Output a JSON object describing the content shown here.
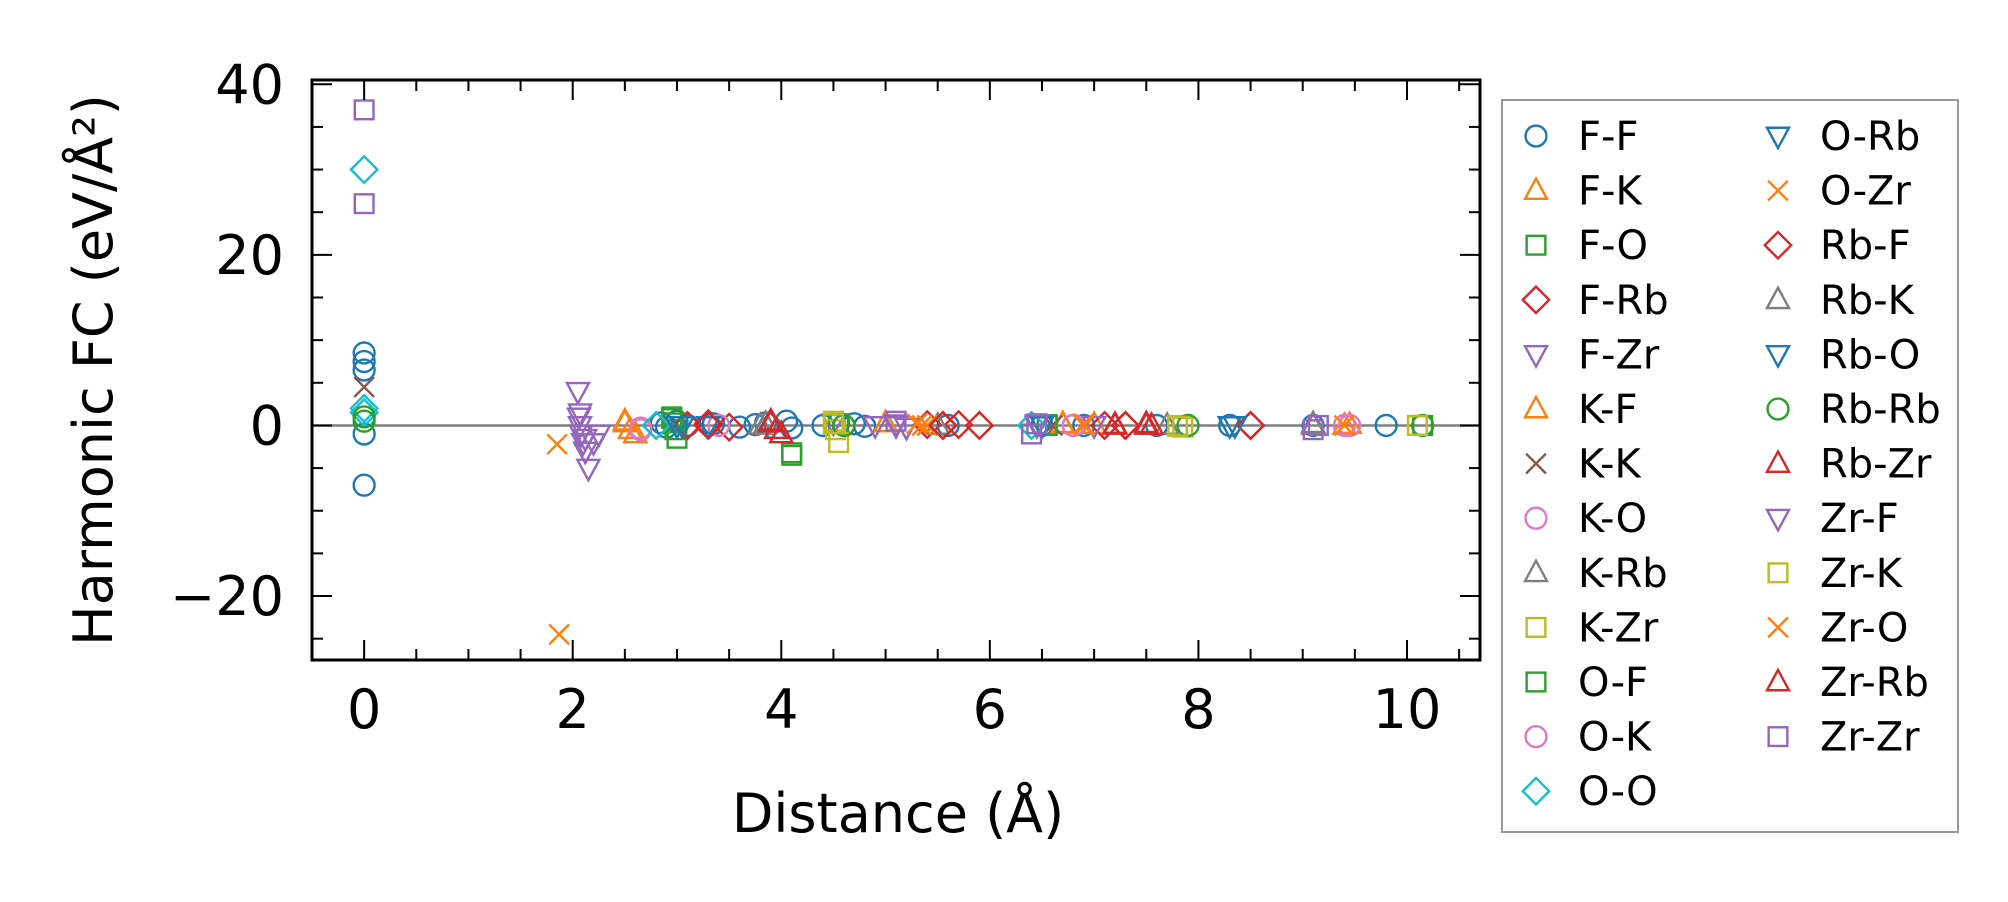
{
  "chart_data": {
    "type": "scatter",
    "title": "",
    "xlabel": "Distance (Å)",
    "ylabel": "Harmonic FC (eV/Å²)",
    "xlim": [
      -0.5,
      10.7
    ],
    "ylim": [
      -27.5,
      40.5
    ],
    "xticks": [
      0,
      2,
      4,
      6,
      8,
      10
    ],
    "xtick_labels": [
      "0",
      "2",
      "4",
      "6",
      "8",
      "10"
    ],
    "yticks": [
      -20,
      0,
      20,
      40
    ],
    "ytick_labels": [
      "−20",
      "0",
      "20",
      "40"
    ],
    "reference_line_y": 0,
    "legend_position": "outside-right",
    "series": [
      {
        "name": "F-F",
        "marker": "circle",
        "color": "#1f77b4",
        "points": [
          [
            0,
            8.5
          ],
          [
            0,
            7.5
          ],
          [
            0,
            6.5
          ],
          [
            0,
            -1
          ],
          [
            0,
            -7
          ],
          [
            2.85,
            0.3
          ],
          [
            2.9,
            -0.2
          ],
          [
            3.0,
            0.5
          ],
          [
            3.1,
            0
          ],
          [
            3.35,
            0.2
          ],
          [
            3.6,
            -0.2
          ],
          [
            3.75,
            0.1
          ],
          [
            3.85,
            0.3
          ],
          [
            4.05,
            0.5
          ],
          [
            4.1,
            -0.3
          ],
          [
            4.4,
            0
          ],
          [
            4.55,
            0.3
          ],
          [
            4.6,
            0
          ],
          [
            4.7,
            0.2
          ],
          [
            4.8,
            -0.1
          ],
          [
            5.6,
            0
          ],
          [
            6.5,
            0
          ],
          [
            6.9,
            0
          ],
          [
            7.6,
            0
          ],
          [
            8.3,
            0
          ],
          [
            9.1,
            0
          ],
          [
            9.8,
            0
          ]
        ]
      },
      {
        "name": "F-K",
        "marker": "triangle-up",
        "color": "#ff7f0e",
        "points": [
          [
            2.5,
            0.5
          ],
          [
            2.55,
            -0.5
          ],
          [
            2.6,
            -1
          ],
          [
            5.0,
            0.3
          ],
          [
            6.7,
            0.2
          ],
          [
            7.0,
            0.1
          ],
          [
            9.45,
            0.1
          ]
        ]
      },
      {
        "name": "F-O",
        "marker": "square",
        "color": "#2ca02c",
        "points": [
          [
            2.95,
            1
          ],
          [
            2.97,
            0.3
          ],
          [
            2.98,
            -0.5
          ],
          [
            3.0,
            -1.5
          ],
          [
            4.1,
            -3.5
          ],
          [
            4.55,
            0.2
          ],
          [
            6.55,
            0.1
          ],
          [
            10.15,
            0
          ]
        ]
      },
      {
        "name": "F-Rb",
        "marker": "diamond",
        "color": "#d62728",
        "points": [
          [
            3.1,
            0
          ],
          [
            3.3,
            0.2
          ],
          [
            3.5,
            -0.2
          ],
          [
            5.4,
            0.1
          ],
          [
            5.55,
            0
          ],
          [
            5.7,
            0.1
          ],
          [
            5.9,
            0
          ],
          [
            7.1,
            0
          ],
          [
            7.3,
            0
          ],
          [
            8.5,
            0
          ]
        ]
      },
      {
        "name": "F-Zr",
        "marker": "triangle-down",
        "color": "#9467bd",
        "points": [
          [
            2.05,
            4
          ],
          [
            2.06,
            1
          ],
          [
            2.07,
            0
          ],
          [
            2.08,
            -1
          ],
          [
            2.1,
            -2
          ],
          [
            2.12,
            -3
          ],
          [
            2.15,
            -5
          ],
          [
            2.2,
            -2
          ],
          [
            2.25,
            -1
          ],
          [
            4.5,
            0.3
          ],
          [
            4.9,
            0
          ],
          [
            5.1,
            0.2
          ],
          [
            5.2,
            -0.2
          ],
          [
            6.45,
            0
          ],
          [
            7.0,
            0
          ]
        ]
      },
      {
        "name": "K-F",
        "marker": "triangle-up",
        "color": "#ff7f0e",
        "points": [
          [
            2.5,
            0.3
          ],
          [
            6.7,
            0.1
          ],
          [
            9.4,
            0
          ]
        ]
      },
      {
        "name": "K-K",
        "marker": "x",
        "color": "#8c564b",
        "points": [
          [
            0,
            4.5
          ],
          [
            5.4,
            0
          ],
          [
            6.6,
            0
          ]
        ]
      },
      {
        "name": "K-O",
        "marker": "circle",
        "color": "#e377c2",
        "points": [
          [
            2.65,
            -0.5
          ],
          [
            3.4,
            0
          ],
          [
            6.8,
            0
          ],
          [
            9.4,
            0
          ]
        ]
      },
      {
        "name": "K-Rb",
        "marker": "triangle-up",
        "color": "#7f7f7f",
        "points": [
          [
            3.8,
            0
          ],
          [
            5.5,
            0
          ],
          [
            7.7,
            0
          ],
          [
            9.1,
            0
          ]
        ]
      },
      {
        "name": "K-Zr",
        "marker": "square",
        "color": "#bcbd22",
        "points": [
          [
            4.5,
            0.5
          ],
          [
            4.52,
            -0.5
          ],
          [
            4.55,
            -2
          ],
          [
            7.8,
            0
          ],
          [
            7.85,
            -0.2
          ],
          [
            10.1,
            0
          ]
        ]
      },
      {
        "name": "O-F",
        "marker": "square",
        "color": "#2ca02c",
        "points": [
          [
            2.95,
            0.8
          ],
          [
            4.1,
            -3.2
          ],
          [
            6.55,
            0
          ]
        ]
      },
      {
        "name": "O-K",
        "marker": "circle",
        "color": "#e377c2",
        "points": [
          [
            2.65,
            -0.3
          ],
          [
            6.8,
            0
          ],
          [
            9.45,
            0
          ]
        ]
      },
      {
        "name": "O-O",
        "marker": "diamond",
        "color": "#17becf",
        "points": [
          [
            0,
            30
          ],
          [
            0,
            2
          ],
          [
            0,
            1.5
          ],
          [
            2.8,
            0
          ],
          [
            3.9,
            0
          ],
          [
            6.4,
            0
          ]
        ]
      },
      {
        "name": "O-Rb",
        "marker": "triangle-down",
        "color": "#1f77b4",
        "points": [
          [
            3.0,
            0
          ],
          [
            3.3,
            0
          ],
          [
            6.5,
            0
          ],
          [
            8.3,
            0
          ]
        ]
      },
      {
        "name": "O-Zr",
        "marker": "x",
        "color": "#ff7f0e",
        "points": [
          [
            1.85,
            -2.2
          ],
          [
            5.3,
            0.2
          ],
          [
            5.4,
            0
          ],
          [
            6.9,
            0.2
          ],
          [
            9.4,
            0
          ]
        ]
      },
      {
        "name": "Rb-F",
        "marker": "diamond",
        "color": "#d62728",
        "points": [
          [
            3.3,
            0
          ],
          [
            5.55,
            0
          ],
          [
            7.3,
            0
          ],
          [
            8.5,
            0
          ]
        ]
      },
      {
        "name": "Rb-K",
        "marker": "triangle-up",
        "color": "#7f7f7f",
        "points": [
          [
            3.85,
            0.2
          ],
          [
            9.1,
            0.2
          ]
        ]
      },
      {
        "name": "Rb-O",
        "marker": "triangle-down",
        "color": "#1f77b4",
        "points": [
          [
            3.05,
            0
          ],
          [
            6.5,
            0
          ],
          [
            8.35,
            0
          ]
        ]
      },
      {
        "name": "Rb-Rb",
        "marker": "circle",
        "color": "#2ca02c",
        "points": [
          [
            0,
            1
          ],
          [
            0,
            0.5
          ],
          [
            4.6,
            0
          ],
          [
            7.9,
            0
          ],
          [
            10.15,
            0
          ]
        ]
      },
      {
        "name": "Rb-Zr",
        "marker": "triangle-up",
        "color": "#d62728",
        "points": [
          [
            3.9,
            0.5
          ],
          [
            3.95,
            -0.5
          ],
          [
            4.0,
            -1
          ],
          [
            7.2,
            0
          ],
          [
            7.5,
            0.2
          ],
          [
            7.55,
            0
          ]
        ]
      },
      {
        "name": "Zr-F",
        "marker": "triangle-down",
        "color": "#9467bd",
        "points": [
          [
            2.07,
            1.5
          ],
          [
            2.12,
            -1.5
          ],
          [
            5.1,
            0
          ],
          [
            6.45,
            0.2
          ]
        ]
      },
      {
        "name": "Zr-K",
        "marker": "square",
        "color": "#bcbd22",
        "points": [
          [
            4.5,
            0.2
          ],
          [
            7.8,
            -0.1
          ],
          [
            10.1,
            0
          ]
        ]
      },
      {
        "name": "Zr-O",
        "marker": "x",
        "color": "#ff7f0e",
        "points": [
          [
            1.87,
            -24.5
          ],
          [
            5.35,
            0
          ],
          [
            6.9,
            0
          ]
        ]
      },
      {
        "name": "Zr-Rb",
        "marker": "triangle-up",
        "color": "#d62728",
        "points": [
          [
            3.9,
            0.3
          ],
          [
            7.2,
            0.1
          ],
          [
            7.5,
            0
          ]
        ]
      },
      {
        "name": "Zr-Zr",
        "marker": "square",
        "color": "#9467bd",
        "points": [
          [
            0,
            37
          ],
          [
            0,
            26
          ],
          [
            5.1,
            0.5
          ],
          [
            6.4,
            -1
          ],
          [
            6.45,
            0.2
          ],
          [
            9.1,
            -0.5
          ],
          [
            9.15,
            0
          ]
        ]
      }
    ]
  }
}
